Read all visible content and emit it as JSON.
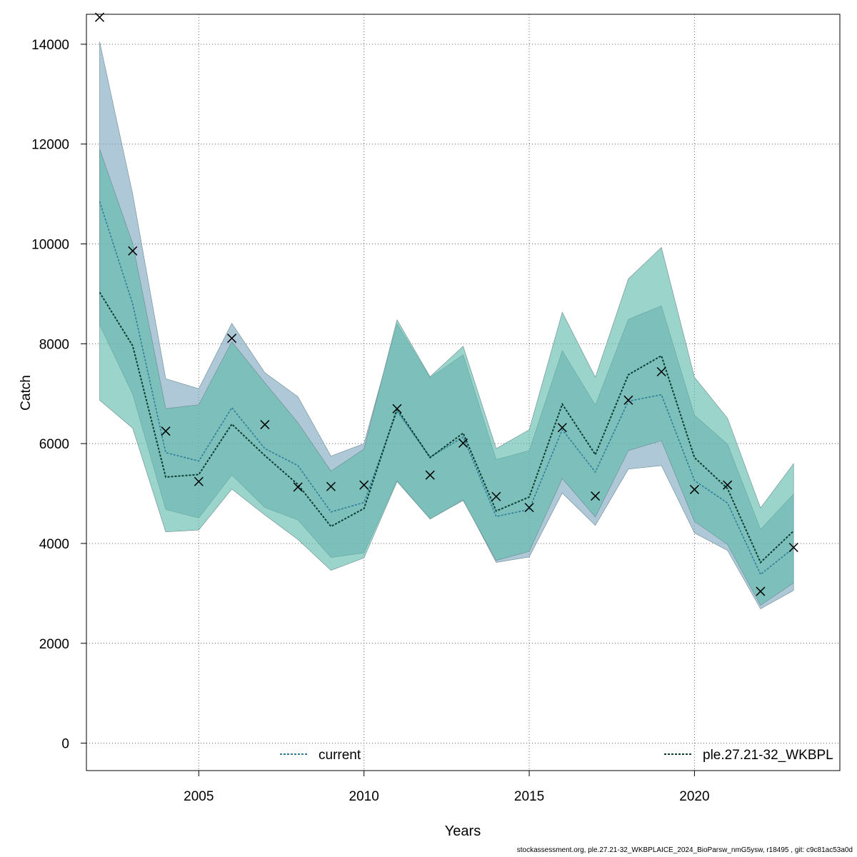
{
  "chart_data": {
    "type": "line",
    "xlabel": "Years",
    "ylabel": "Catch",
    "xlim": [
      2001.6,
      2024.4
    ],
    "ylim": [
      -550,
      14600
    ],
    "x_ticks": [
      "2005",
      "2010",
      "2015",
      "2020"
    ],
    "y_ticks": [
      "0",
      "2000",
      "4000",
      "6000",
      "8000",
      "10000",
      "12000",
      "14000"
    ],
    "grid": true,
    "years": [
      2002,
      2003,
      2004,
      2005,
      2006,
      2007,
      2008,
      2009,
      2010,
      2011,
      2012,
      2013,
      2014,
      2015,
      2016,
      2017,
      2018,
      2019,
      2020,
      2021,
      2022,
      2023
    ],
    "observed": {
      "marker": "x",
      "values": [
        14540,
        9860,
        6250,
        5240,
        8110,
        6380,
        5130,
        5140,
        5170,
        6700,
        5370,
        6010,
        4940,
        4720,
        6320,
        4950,
        6870,
        7440,
        5080,
        5170,
        3040,
        3920
      ]
    },
    "series": [
      {
        "name": "current",
        "color": "#2f7f9a",
        "band_color": "#7ea7c0",
        "estimate": [
          10850,
          8800,
          5820,
          5650,
          6720,
          5900,
          5560,
          4630,
          4820,
          6650,
          5730,
          6130,
          4540,
          4680,
          6280,
          5430,
          6850,
          6980,
          5260,
          4810,
          3380,
          3910
        ],
        "lower": [
          8380,
          6990,
          4680,
          4510,
          5370,
          4720,
          4470,
          3720,
          3810,
          5260,
          4490,
          4880,
          3620,
          3730,
          5010,
          4360,
          5490,
          5560,
          4210,
          3860,
          2690,
          3060
        ],
        "upper": [
          14050,
          11000,
          7300,
          7100,
          8410,
          7420,
          6940,
          5750,
          6000,
          8400,
          7320,
          7780,
          5680,
          5860,
          7860,
          6770,
          8490,
          8760,
          6570,
          5990,
          4280,
          4990
        ]
      },
      {
        "name": "ple.27.21-32_WKBPL",
        "color": "#0b3d33",
        "band_color": "#5dbaaa",
        "estimate": [
          9030,
          7960,
          5330,
          5380,
          6390,
          5760,
          5180,
          4340,
          4700,
          6700,
          5720,
          6210,
          4650,
          4930,
          6790,
          5780,
          7380,
          7760,
          5720,
          5100,
          3620,
          4250
        ],
        "lower": [
          6870,
          6310,
          4230,
          4270,
          5090,
          4570,
          4080,
          3460,
          3710,
          5240,
          4490,
          4860,
          3660,
          3840,
          5300,
          4530,
          5860,
          6060,
          4440,
          3980,
          2760,
          3210
        ],
        "upper": [
          11900,
          10010,
          6700,
          6780,
          8040,
          7220,
          6420,
          5450,
          5890,
          8480,
          7340,
          7950,
          5900,
          6280,
          8630,
          7330,
          9300,
          9930,
          7330,
          6510,
          4710,
          5600
        ]
      }
    ],
    "legend": [
      {
        "label": "current",
        "position": "bottom-center"
      },
      {
        "label": "ple.27.21-32_WKBPL",
        "position": "bottom-right"
      }
    ]
  },
  "footer": "stockassessment.org, ple.27.21-32_WKBPLAICE_2024_BioParsw_nmG5ysw, r18495 , git: c9c81ac53a0d"
}
